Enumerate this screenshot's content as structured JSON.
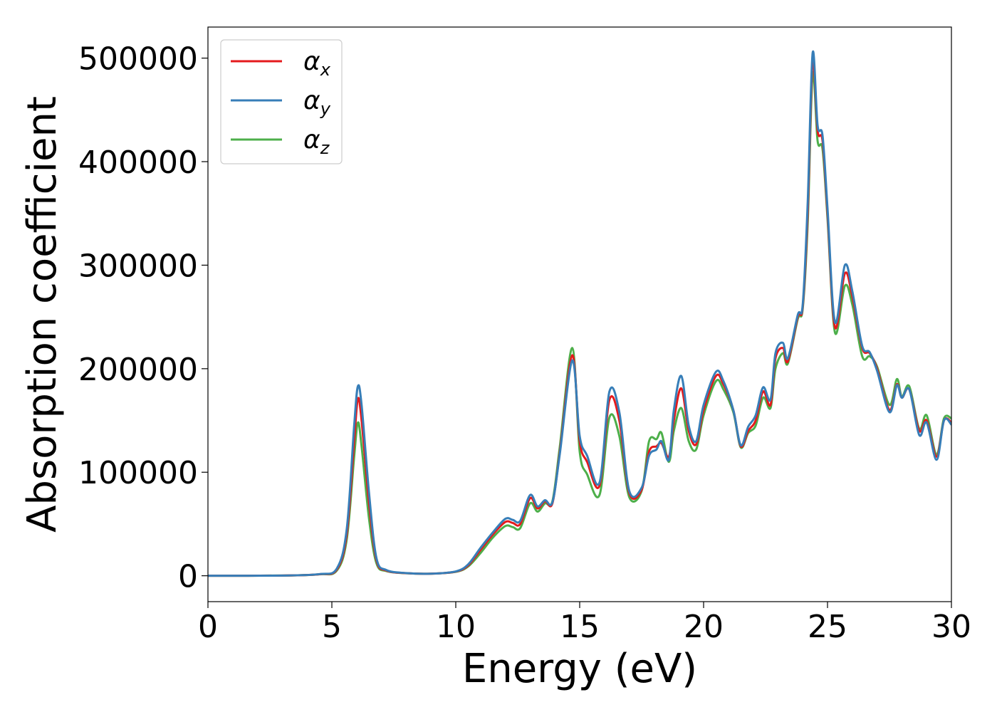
{
  "chart_data": {
    "type": "line",
    "title": "",
    "xlabel": "Energy (eV)",
    "ylabel": "Absorption coefficient",
    "xlim": [
      0,
      30
    ],
    "ylim": [
      -25000,
      530000
    ],
    "xticks": [
      0,
      5,
      10,
      15,
      20,
      25,
      30
    ],
    "yticks": [
      0,
      100000,
      200000,
      300000,
      400000,
      500000
    ],
    "xtick_labels": [
      "0",
      "5",
      "10",
      "15",
      "20",
      "25",
      "30"
    ],
    "ytick_labels": [
      "0",
      "100000",
      "200000",
      "300000",
      "400000",
      "500000"
    ],
    "grid": false,
    "legend_position": "top-left",
    "series": [
      {
        "name": "α",
        "subscript": "x",
        "color": "#e41a1c",
        "points": [
          [
            0,
            0
          ],
          [
            3,
            200
          ],
          [
            4.5,
            1500
          ],
          [
            5.2,
            6000
          ],
          [
            5.6,
            40000
          ],
          [
            5.9,
            130000
          ],
          [
            6.05,
            171000
          ],
          [
            6.2,
            150000
          ],
          [
            6.5,
            70000
          ],
          [
            6.8,
            15000
          ],
          [
            7.2,
            5000
          ],
          [
            8,
            2500
          ],
          [
            9,
            2000
          ],
          [
            10,
            4000
          ],
          [
            10.5,
            10000
          ],
          [
            11,
            25000
          ],
          [
            11.5,
            40000
          ],
          [
            12,
            52000
          ],
          [
            12.3,
            51000
          ],
          [
            12.6,
            50000
          ],
          [
            13,
            75000
          ],
          [
            13.3,
            65000
          ],
          [
            13.6,
            72000
          ],
          [
            13.9,
            70000
          ],
          [
            14.2,
            120000
          ],
          [
            14.7,
            213000
          ],
          [
            15,
            130000
          ],
          [
            15.3,
            110000
          ],
          [
            15.8,
            87000
          ],
          [
            16.2,
            170000
          ],
          [
            16.6,
            150000
          ],
          [
            17,
            80000
          ],
          [
            17.5,
            83000
          ],
          [
            17.8,
            120000
          ],
          [
            18.1,
            125000
          ],
          [
            18.3,
            128000
          ],
          [
            18.6,
            115000
          ],
          [
            18.8,
            150000
          ],
          [
            19.1,
            181000
          ],
          [
            19.4,
            140000
          ],
          [
            19.7,
            127000
          ],
          [
            20,
            160000
          ],
          [
            20.5,
            193000
          ],
          [
            20.8,
            185000
          ],
          [
            21.2,
            160000
          ],
          [
            21.5,
            125000
          ],
          [
            21.8,
            140000
          ],
          [
            22.1,
            150000
          ],
          [
            22.4,
            178000
          ],
          [
            22.7,
            165000
          ],
          [
            22.9,
            210000
          ],
          [
            23.2,
            220000
          ],
          [
            23.4,
            207000
          ],
          [
            23.8,
            250000
          ],
          [
            24,
            260000
          ],
          [
            24.2,
            350000
          ],
          [
            24.4,
            497000
          ],
          [
            24.6,
            430000
          ],
          [
            24.8,
            420000
          ],
          [
            25,
            350000
          ],
          [
            25.3,
            240000
          ],
          [
            25.7,
            292000
          ],
          [
            26,
            270000
          ],
          [
            26.4,
            220000
          ],
          [
            26.7,
            215000
          ],
          [
            27,
            200000
          ],
          [
            27.5,
            160000
          ],
          [
            27.8,
            185000
          ],
          [
            28,
            172000
          ],
          [
            28.3,
            180000
          ],
          [
            28.7,
            140000
          ],
          [
            29,
            150000
          ],
          [
            29.4,
            115000
          ],
          [
            29.7,
            150000
          ],
          [
            30,
            148000
          ]
        ]
      },
      {
        "name": "α",
        "subscript": "y",
        "color": "#377eb8",
        "points": [
          [
            0,
            0
          ],
          [
            3,
            200
          ],
          [
            4.5,
            1600
          ],
          [
            5.2,
            7000
          ],
          [
            5.6,
            45000
          ],
          [
            5.9,
            145000
          ],
          [
            6.05,
            183000
          ],
          [
            6.2,
            165000
          ],
          [
            6.5,
            80000
          ],
          [
            6.8,
            17000
          ],
          [
            7.2,
            5500
          ],
          [
            8,
            2600
          ],
          [
            9,
            2000
          ],
          [
            10,
            4200
          ],
          [
            10.5,
            11000
          ],
          [
            11,
            27000
          ],
          [
            11.5,
            42000
          ],
          [
            12,
            55000
          ],
          [
            12.3,
            54000
          ],
          [
            12.6,
            53000
          ],
          [
            13,
            78000
          ],
          [
            13.3,
            67000
          ],
          [
            13.6,
            73000
          ],
          [
            13.9,
            71000
          ],
          [
            14.2,
            118000
          ],
          [
            14.7,
            208000
          ],
          [
            15,
            135000
          ],
          [
            15.3,
            116000
          ],
          [
            15.8,
            90000
          ],
          [
            16.2,
            178000
          ],
          [
            16.6,
            158000
          ],
          [
            17,
            82000
          ],
          [
            17.5,
            85000
          ],
          [
            17.8,
            116000
          ],
          [
            18.1,
            122000
          ],
          [
            18.3,
            130000
          ],
          [
            18.6,
            112000
          ],
          [
            18.8,
            160000
          ],
          [
            19.1,
            193000
          ],
          [
            19.4,
            145000
          ],
          [
            19.7,
            130000
          ],
          [
            20,
            165000
          ],
          [
            20.5,
            197000
          ],
          [
            20.8,
            188000
          ],
          [
            21.2,
            160000
          ],
          [
            21.5,
            126000
          ],
          [
            21.8,
            144000
          ],
          [
            22.1,
            155000
          ],
          [
            22.4,
            182000
          ],
          [
            22.7,
            170000
          ],
          [
            22.9,
            215000
          ],
          [
            23.2,
            225000
          ],
          [
            23.4,
            210000
          ],
          [
            23.8,
            252000
          ],
          [
            24,
            262000
          ],
          [
            24.2,
            360000
          ],
          [
            24.4,
            505000
          ],
          [
            24.6,
            435000
          ],
          [
            24.8,
            425000
          ],
          [
            25,
            355000
          ],
          [
            25.3,
            245000
          ],
          [
            25.7,
            300000
          ],
          [
            26,
            275000
          ],
          [
            26.4,
            222000
          ],
          [
            26.7,
            216000
          ],
          [
            27,
            198000
          ],
          [
            27.5,
            158000
          ],
          [
            27.8,
            184000
          ],
          [
            28,
            172000
          ],
          [
            28.3,
            180000
          ],
          [
            28.7,
            136000
          ],
          [
            29,
            148000
          ],
          [
            29.4,
            112000
          ],
          [
            29.7,
            150000
          ],
          [
            30,
            146000
          ]
        ]
      },
      {
        "name": "α",
        "subscript": "z",
        "color": "#4daf4a",
        "points": [
          [
            0,
            0
          ],
          [
            3,
            200
          ],
          [
            4.5,
            1400
          ],
          [
            5.2,
            5000
          ],
          [
            5.6,
            35000
          ],
          [
            5.9,
            115000
          ],
          [
            6.05,
            148000
          ],
          [
            6.2,
            125000
          ],
          [
            6.5,
            55000
          ],
          [
            6.8,
            12000
          ],
          [
            7.2,
            4500
          ],
          [
            8,
            2400
          ],
          [
            9,
            2000
          ],
          [
            10,
            3800
          ],
          [
            10.5,
            9000
          ],
          [
            11,
            22000
          ],
          [
            11.5,
            37000
          ],
          [
            12,
            48000
          ],
          [
            12.3,
            47000
          ],
          [
            12.6,
            46000
          ],
          [
            13,
            70000
          ],
          [
            13.3,
            62000
          ],
          [
            13.6,
            70000
          ],
          [
            13.9,
            72000
          ],
          [
            14.2,
            125000
          ],
          [
            14.7,
            220000
          ],
          [
            15,
            120000
          ],
          [
            15.3,
            98000
          ],
          [
            15.8,
            78000
          ],
          [
            16.2,
            153000
          ],
          [
            16.6,
            135000
          ],
          [
            17,
            76000
          ],
          [
            17.5,
            82000
          ],
          [
            17.8,
            130000
          ],
          [
            18.1,
            132000
          ],
          [
            18.3,
            138000
          ],
          [
            18.6,
            110000
          ],
          [
            18.8,
            140000
          ],
          [
            19.1,
            162000
          ],
          [
            19.4,
            130000
          ],
          [
            19.7,
            122000
          ],
          [
            20,
            155000
          ],
          [
            20.5,
            188000
          ],
          [
            20.8,
            180000
          ],
          [
            21.2,
            158000
          ],
          [
            21.5,
            124000
          ],
          [
            21.8,
            138000
          ],
          [
            22.1,
            145000
          ],
          [
            22.4,
            172000
          ],
          [
            22.7,
            162000
          ],
          [
            22.9,
            200000
          ],
          [
            23.2,
            215000
          ],
          [
            23.4,
            205000
          ],
          [
            23.8,
            248000
          ],
          [
            24,
            258000
          ],
          [
            24.2,
            340000
          ],
          [
            24.4,
            485000
          ],
          [
            24.6,
            420000
          ],
          [
            24.8,
            412000
          ],
          [
            25,
            345000
          ],
          [
            25.3,
            235000
          ],
          [
            25.7,
            280000
          ],
          [
            26,
            262000
          ],
          [
            26.4,
            212000
          ],
          [
            26.7,
            212000
          ],
          [
            27,
            202000
          ],
          [
            27.5,
            165000
          ],
          [
            27.8,
            190000
          ],
          [
            28,
            173000
          ],
          [
            28.3,
            183000
          ],
          [
            28.7,
            142000
          ],
          [
            29,
            155000
          ],
          [
            29.4,
            117000
          ],
          [
            29.7,
            152000
          ],
          [
            30,
            152000
          ]
        ]
      }
    ]
  }
}
